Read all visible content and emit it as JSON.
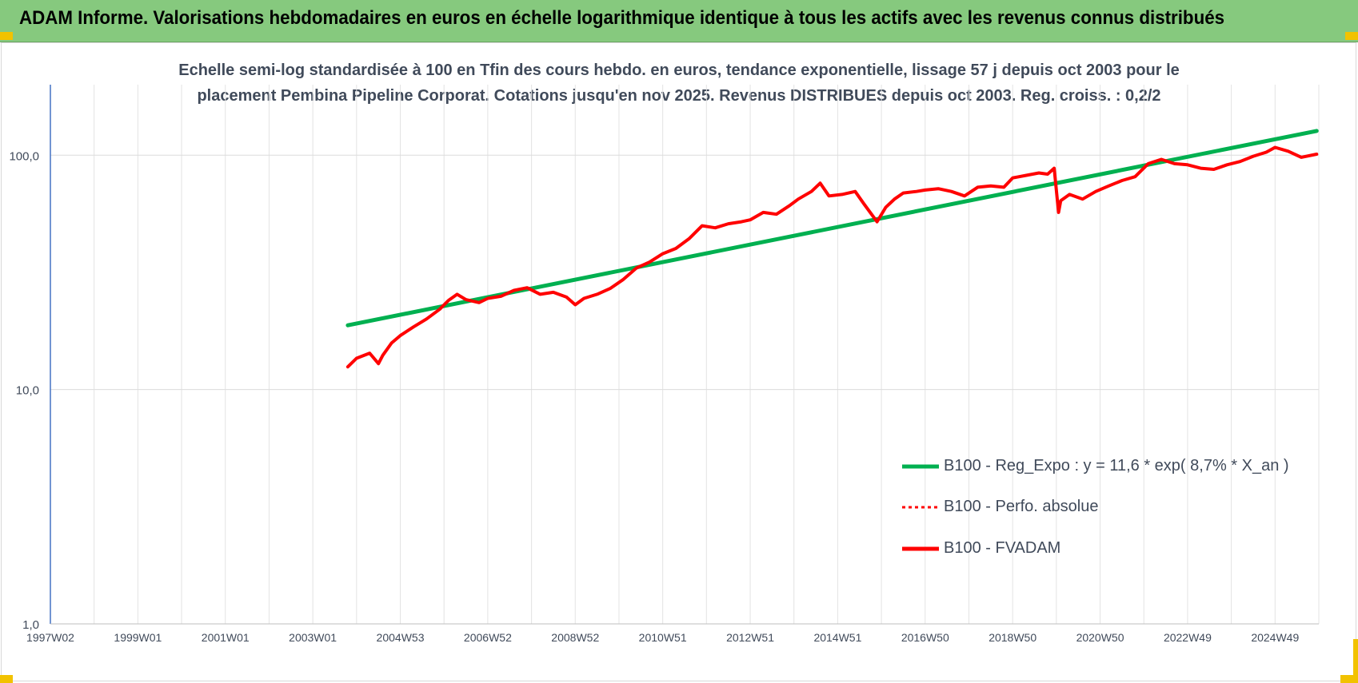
{
  "header": {
    "title": "ADAM Informe. Valorisations hebdomadaires en euros en échelle logarithmique identique à tous les actifs avec les revenus connus distribués"
  },
  "colors": {
    "banner": "#86c97e",
    "regression": "#00b050",
    "performance": "#ff0000",
    "fvadam": "#ff0000",
    "corner": "#f2c200",
    "axis": "#4472c4"
  },
  "chart_data": {
    "type": "line",
    "title_line1": "Echelle semi-log standardisée à 100 en Tfin des cours hebdo. en euros, tendance exponentielle, lissage 57 j depuis oct 2003 pour le",
    "title_line2": "placement Pembina Pipeline Corporat. Cotations jusqu'en nov 2025. Revenus DISTRIBUES depuis oct 2003. Reg. croiss. : 0,2/2",
    "y_scale": "log",
    "ylim": [
      1,
      200
    ],
    "y_ticks": [
      {
        "value": 1,
        "label": "1,0"
      },
      {
        "value": 10,
        "label": "10,0"
      },
      {
        "value": 100,
        "label": "100,0"
      }
    ],
    "xlim": [
      1997.0,
      2026.0
    ],
    "x_ticks": [
      {
        "value": 1997.0,
        "label": "1997W02"
      },
      {
        "value": 1999.0,
        "label": "1999W01"
      },
      {
        "value": 2001.0,
        "label": "2001W01"
      },
      {
        "value": 2003.0,
        "label": "2003W01"
      },
      {
        "value": 2005.0,
        "label": "2004W53"
      },
      {
        "value": 2007.0,
        "label": "2006W52"
      },
      {
        "value": 2009.0,
        "label": "2008W52"
      },
      {
        "value": 2011.0,
        "label": "2010W51"
      },
      {
        "value": 2013.0,
        "label": "2012W51"
      },
      {
        "value": 2015.0,
        "label": "2014W51"
      },
      {
        "value": 2017.0,
        "label": "2016W50"
      },
      {
        "value": 2019.0,
        "label": "2018W50"
      },
      {
        "value": 2021.0,
        "label": "2020W50"
      },
      {
        "value": 2023.0,
        "label": "2022W49"
      },
      {
        "value": 2025.0,
        "label": "2024W49"
      }
    ],
    "legend_position": "bottom-right",
    "series": [
      {
        "name": "B100 - Reg_Expo : y = 11,6 * exp( 8,7% *  X_an )",
        "style": "solid",
        "color": "#00b050",
        "x": [
          2003.8,
          2025.95
        ],
        "y": [
          18.8,
          127
        ]
      },
      {
        "name": "B100 - Perfo. absolue",
        "style": "dotted",
        "color": "#ff0000",
        "x": [],
        "y": []
      },
      {
        "name": "B100 - FVADAM",
        "style": "solid",
        "color": "#ff0000",
        "x": [
          2003.8,
          2004.0,
          2004.3,
          2004.5,
          2004.6,
          2004.8,
          2005.0,
          2005.3,
          2005.6,
          2005.9,
          2006.1,
          2006.3,
          2006.5,
          2006.8,
          2007.0,
          2007.3,
          2007.6,
          2007.9,
          2008.2,
          2008.5,
          2008.8,
          2009.0,
          2009.2,
          2009.5,
          2009.8,
          2010.1,
          2010.4,
          2010.7,
          2011.0,
          2011.3,
          2011.6,
          2011.9,
          2012.2,
          2012.5,
          2012.8,
          2013.0,
          2013.3,
          2013.6,
          2013.9,
          2014.1,
          2014.4,
          2014.6,
          2014.8,
          2015.1,
          2015.4,
          2015.6,
          2015.9,
          2016.1,
          2016.3,
          2016.5,
          2016.8,
          2017.0,
          2017.3,
          2017.6,
          2017.9,
          2018.2,
          2018.5,
          2018.8,
          2019.0,
          2019.3,
          2019.6,
          2019.8,
          2019.95,
          2020.05,
          2020.1,
          2020.3,
          2020.6,
          2020.9,
          2021.2,
          2021.5,
          2021.8,
          2022.1,
          2022.4,
          2022.7,
          2023.0,
          2023.3,
          2023.6,
          2023.9,
          2024.2,
          2024.5,
          2024.8,
          2025.0,
          2025.3,
          2025.6,
          2025.95
        ],
        "y": [
          12.5,
          13.6,
          14.3,
          12.9,
          14.0,
          15.8,
          17.0,
          18.5,
          20.0,
          22.0,
          24.0,
          25.5,
          24.2,
          23.5,
          24.5,
          25.0,
          26.5,
          27.2,
          25.5,
          26.0,
          24.8,
          23.0,
          24.5,
          25.5,
          27.0,
          29.5,
          33.0,
          35.0,
          38.0,
          40.0,
          44.0,
          50.0,
          49.0,
          51.0,
          52.0,
          53.0,
          57.0,
          56.0,
          61.0,
          65.0,
          70.0,
          76.0,
          67.0,
          68.0,
          70.0,
          62.0,
          52.0,
          60.0,
          65.0,
          69.0,
          70.0,
          71.0,
          72.0,
          70.0,
          67.0,
          73.0,
          74.0,
          73.0,
          80.0,
          82.0,
          84.0,
          83.0,
          88.0,
          57.0,
          64.0,
          68.0,
          65.0,
          70.0,
          74.0,
          78.0,
          81.0,
          92.0,
          96.0,
          92.0,
          91.0,
          88.0,
          87.0,
          91.0,
          94.0,
          99.0,
          103.0,
          108.0,
          104.0,
          98.0,
          101.0
        ]
      }
    ]
  }
}
